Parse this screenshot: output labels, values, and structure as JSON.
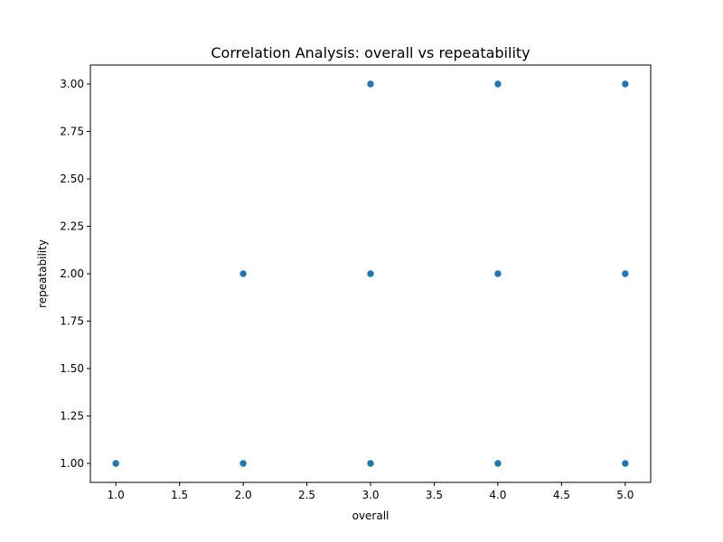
{
  "chart_data": {
    "type": "scatter",
    "title": "Correlation Analysis: overall vs repeatability",
    "xlabel": "overall",
    "ylabel": "repeatability",
    "xlim": [
      0.8,
      5.2
    ],
    "ylim": [
      0.9,
      3.1
    ],
    "x_ticks": [
      "1.0",
      "1.5",
      "2.0",
      "2.5",
      "3.0",
      "3.5",
      "4.0",
      "4.5",
      "5.0"
    ],
    "y_ticks": [
      "1.00",
      "1.25",
      "1.50",
      "1.75",
      "2.00",
      "2.25",
      "2.50",
      "2.75",
      "3.00"
    ],
    "grid": false,
    "series": [
      {
        "color": "#1f77b4",
        "points": [
          {
            "x": 1,
            "y": 1
          },
          {
            "x": 2,
            "y": 1
          },
          {
            "x": 2,
            "y": 2
          },
          {
            "x": 3,
            "y": 1
          },
          {
            "x": 3,
            "y": 2
          },
          {
            "x": 3,
            "y": 3
          },
          {
            "x": 4,
            "y": 1
          },
          {
            "x": 4,
            "y": 2
          },
          {
            "x": 4,
            "y": 3
          },
          {
            "x": 5,
            "y": 1
          },
          {
            "x": 5,
            "y": 2
          },
          {
            "x": 5,
            "y": 3
          }
        ]
      }
    ]
  }
}
